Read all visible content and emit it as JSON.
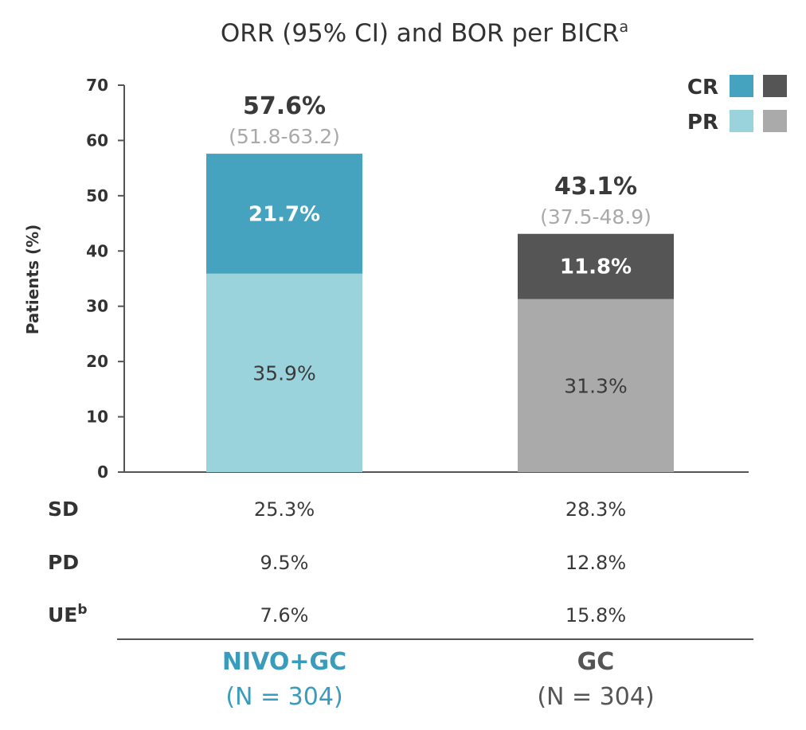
{
  "colors": {
    "nivo_cr": "#46a3bf",
    "nivo_pr": "#9bd3dd",
    "gc_cr": "#555555",
    "gc_pr": "#aaaaaa",
    "nivo_label": "#3a9cbc",
    "gc_label": "#555555"
  },
  "chart_data": {
    "type": "bar",
    "stacked": true,
    "title": "ORR (95% CI) and BOR per BICR",
    "title_superscript": "a",
    "ylabel": "Patients (%)",
    "ylim": [
      0,
      70
    ],
    "yticks": [
      "0",
      "10",
      "20",
      "30",
      "40",
      "50",
      "60",
      "70"
    ],
    "grid": false,
    "legend": {
      "position": "top-right",
      "entries": [
        "CR",
        "PR"
      ]
    },
    "groups": [
      {
        "name": "NIVO+GC",
        "n_label": "(N = 304)",
        "pr": 35.9,
        "cr": 21.7,
        "pr_label": "35.9%",
        "cr_label": "21.7%",
        "orr_label": "57.6%",
        "ci_label": "(51.8-63.2)"
      },
      {
        "name": "GC",
        "n_label": "(N = 304)",
        "pr": 31.3,
        "cr": 11.8,
        "pr_label": "31.3%",
        "cr_label": "11.8%",
        "orr_label": "43.1%",
        "ci_label": "(37.5-48.9)"
      }
    ],
    "table": {
      "rows": [
        {
          "label": "SD",
          "superscript": "",
          "values": [
            "25.3%",
            "28.3%"
          ]
        },
        {
          "label": "PD",
          "superscript": "",
          "values": [
            "9.5%",
            "12.8%"
          ]
        },
        {
          "label": "UE",
          "superscript": "b",
          "values": [
            "7.6%",
            "15.8%"
          ]
        }
      ]
    }
  }
}
